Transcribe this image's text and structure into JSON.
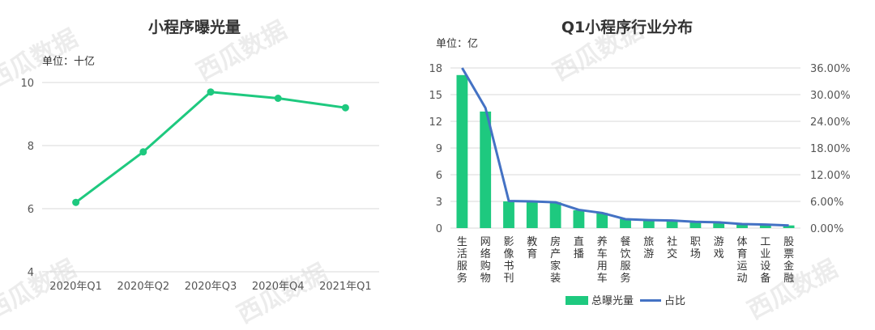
{
  "watermark": "西瓜数据",
  "chart_data": [
    {
      "type": "line",
      "title": "小程序曝光量",
      "unit_label": "单位：十亿",
      "categories": [
        "2020年Q1",
        "2020年Q2",
        "2020年Q3",
        "2020年Q4",
        "2021年Q1"
      ],
      "series": [
        {
          "values": [
            6.2,
            7.8,
            9.7,
            9.5,
            9.2
          ]
        }
      ],
      "ylim": [
        4,
        10
      ],
      "yticks": [
        "4",
        "6",
        "8",
        "10"
      ],
      "grid": true,
      "colors": {
        "line": "#1ec97f"
      }
    },
    {
      "type": "bar",
      "title": "Q1小程序行业分布",
      "unit_label": "单位：亿",
      "categories": [
        "生活服务",
        "网络购物",
        "影像书刊",
        "教育",
        "房产家装",
        "直播",
        "养车用车",
        "餐饮服务",
        "旅游",
        "社交",
        "职场",
        "游戏",
        "体育运动",
        "工业设备",
        "股票金融"
      ],
      "series": [
        {
          "name": "总曝光量",
          "type": "bar",
          "axis": "left",
          "values": [
            17.2,
            13.1,
            3.0,
            3.0,
            2.9,
            2.0,
            1.7,
            1.0,
            0.9,
            0.8,
            0.7,
            0.6,
            0.45,
            0.4,
            0.3
          ]
        },
        {
          "name": "占比",
          "type": "line",
          "axis": "right",
          "values": [
            36.0,
            27.0,
            6.1,
            6.0,
            5.8,
            4.1,
            3.4,
            2.0,
            1.8,
            1.7,
            1.4,
            1.3,
            0.9,
            0.8,
            0.6
          ]
        }
      ],
      "ylim_left": [
        0,
        18
      ],
      "yticks_left": [
        "0",
        "3",
        "6",
        "9",
        "12",
        "15",
        "18"
      ],
      "ylim_right": [
        0,
        36
      ],
      "yticks_right": [
        "0.00%",
        "6.00%",
        "12.00%",
        "18.00%",
        "24.00%",
        "30.00%",
        "36.00%"
      ],
      "legend_position": "bottom",
      "colors": {
        "bar": "#1ec97f",
        "line": "#4472c4"
      }
    }
  ]
}
